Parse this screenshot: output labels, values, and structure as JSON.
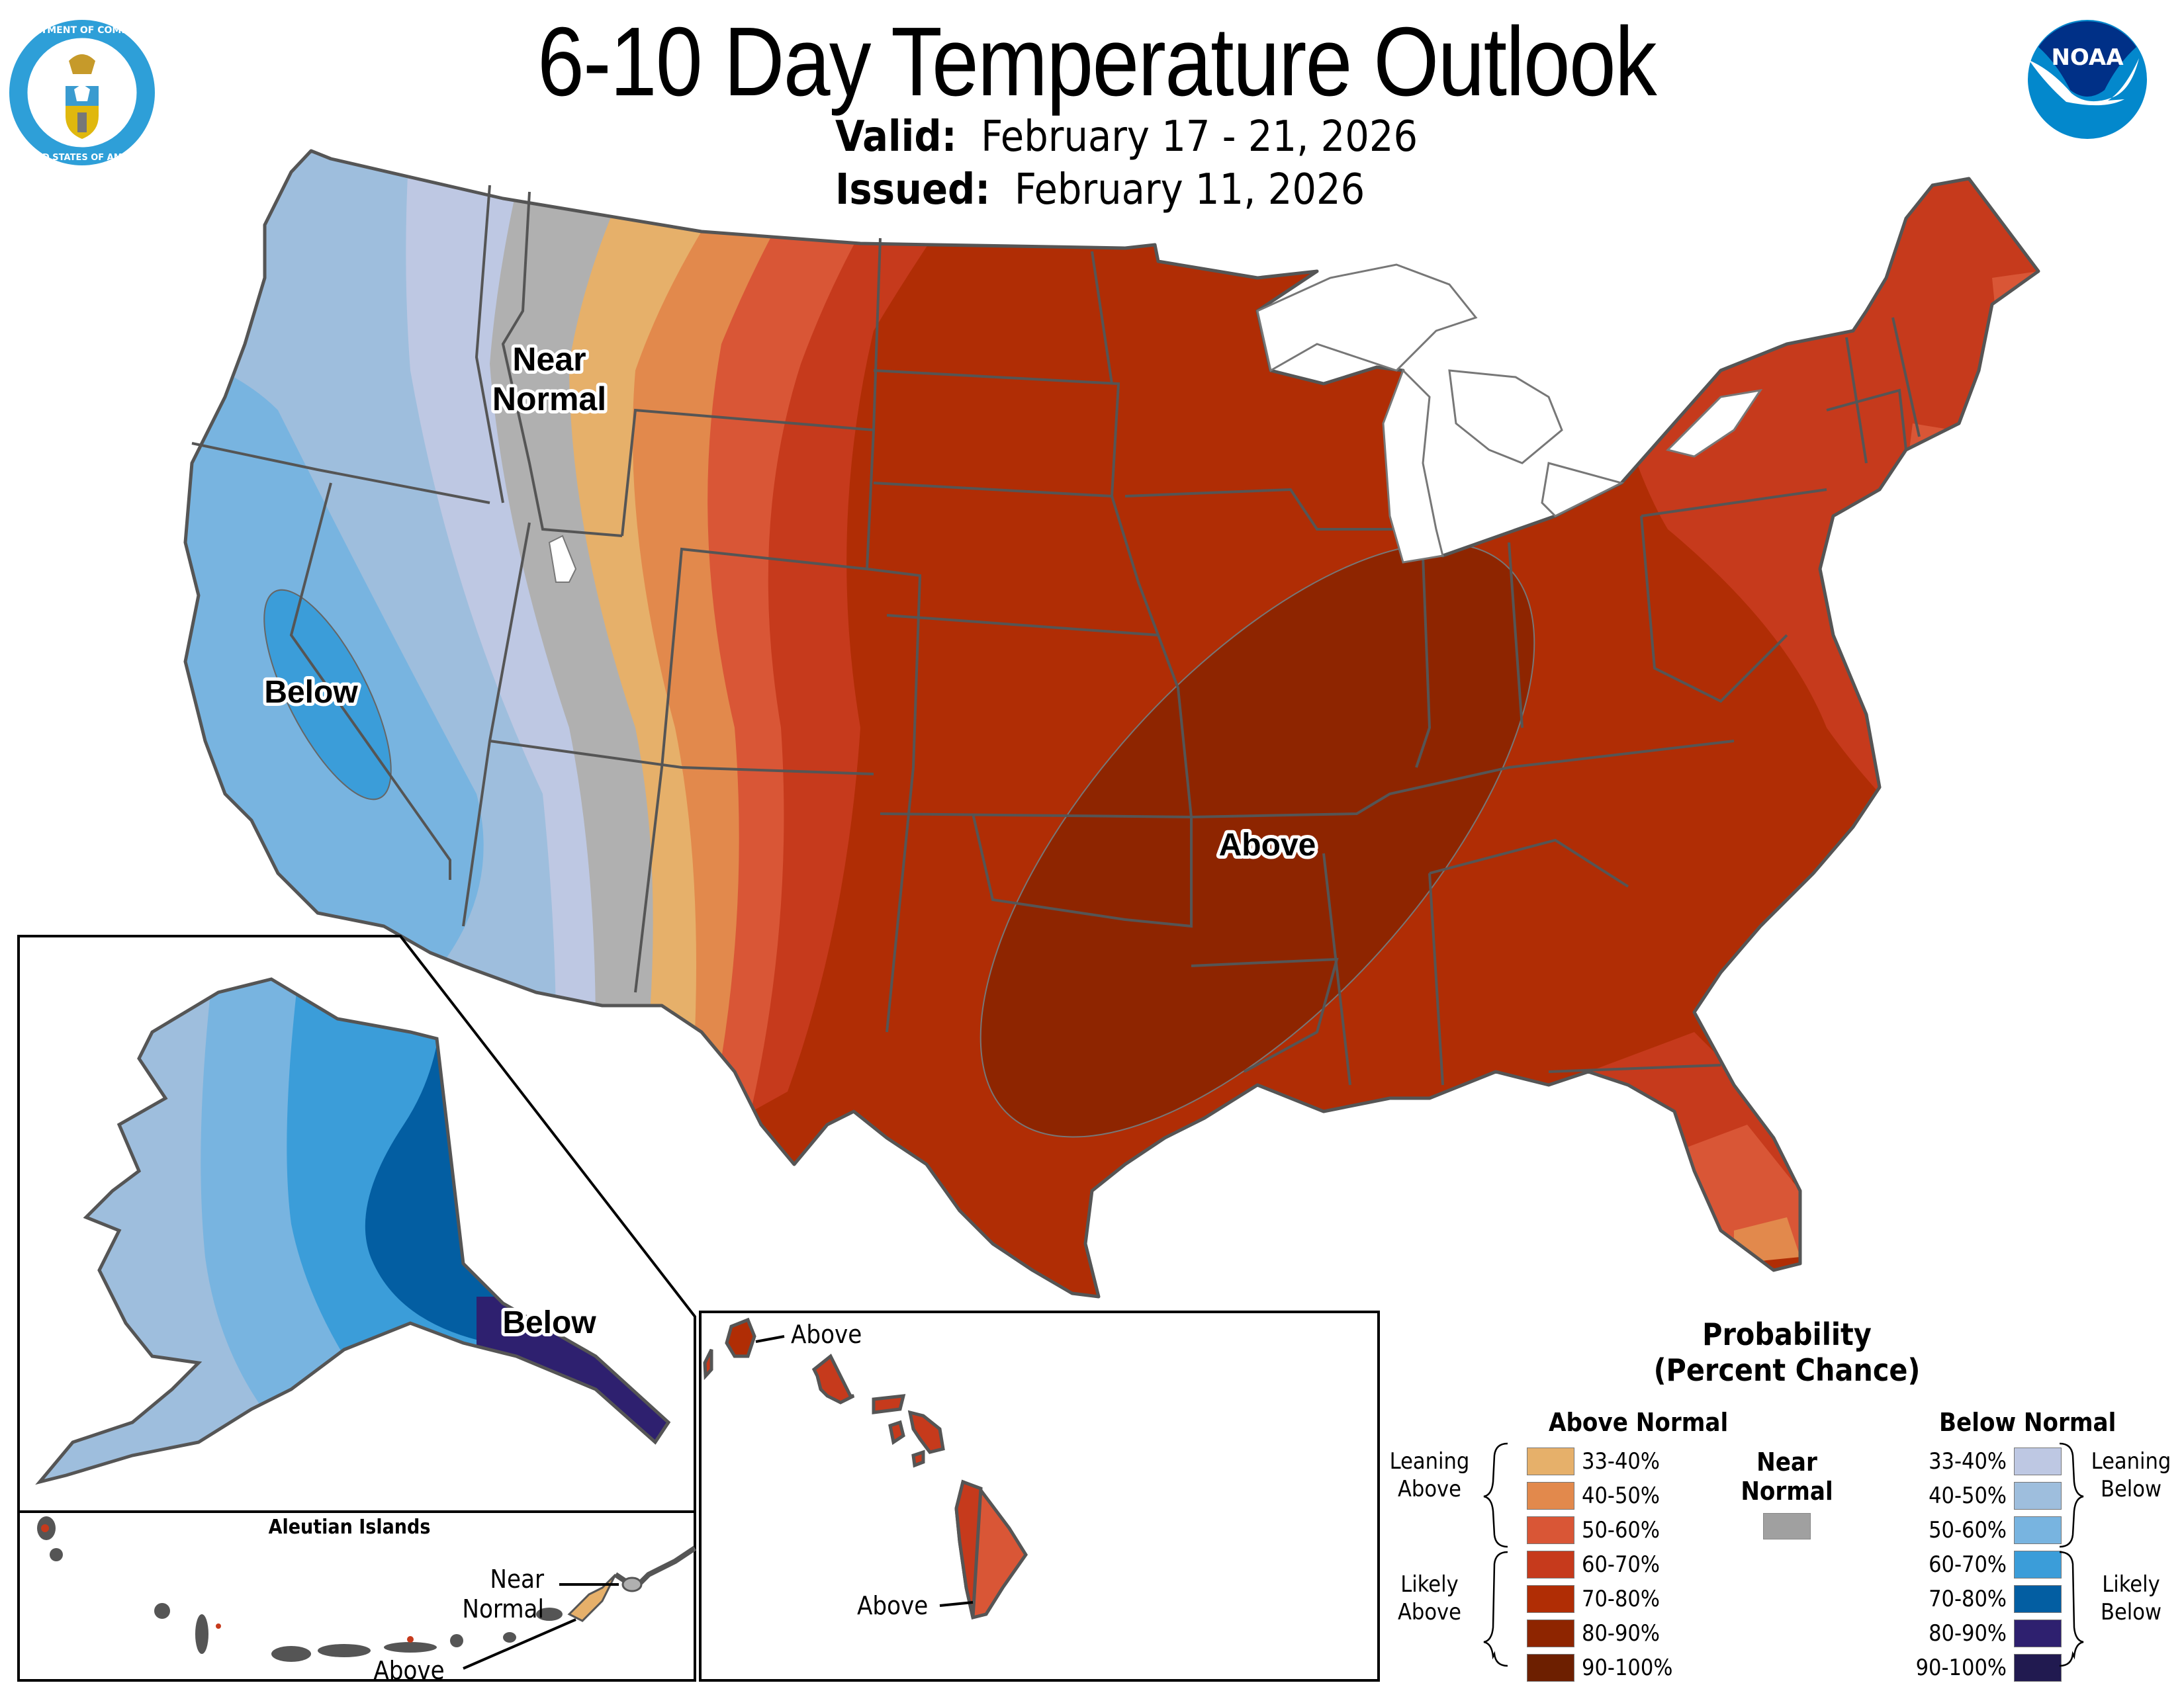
{
  "header": {
    "title": "6-10 Day Temperature Outlook",
    "valid_label": "Valid:",
    "valid_value": "February 17 - 21, 2026",
    "issued_label": "Issued:",
    "issued_value": "February 11, 2026"
  },
  "logos": {
    "left": "Department of Commerce seal",
    "left_text_top": "DEPARTMENT OF COMMERCE",
    "left_text_bottom": "UNITED STATES OF AMERICA",
    "right": "NOAA logo",
    "right_text": "NOAA"
  },
  "map_labels": {
    "near_normal_line1": "Near",
    "near_normal_line2": "Normal",
    "below_conus": "Below",
    "above_conus": "Above",
    "below_alaska": "Below"
  },
  "insets": {
    "aleutian_title": "Aleutian Islands",
    "aleutian_near_line1": "Near",
    "aleutian_near_line2": "Normal",
    "aleutian_above": "Above",
    "hawaii_above_top": "Above",
    "hawaii_above_bottom": "Above"
  },
  "legend": {
    "title_line1": "Probability",
    "title_line2": "(Percent Chance)",
    "above_header": "Above Normal",
    "below_header": "Below Normal",
    "near_header_line1": "Near",
    "near_header_line2": "Normal",
    "near_color": "#a0a0a0",
    "leaning_above_line1": "Leaning",
    "leaning_above_line2": "Above",
    "likely_above_line1": "Likely",
    "likely_above_line2": "Above",
    "leaning_below_line1": "Leaning",
    "leaning_below_line2": "Below",
    "likely_below_line1": "Likely",
    "likely_below_line2": "Below",
    "above": [
      {
        "label": "33-40%",
        "color": "#e6b06a"
      },
      {
        "label": "40-50%",
        "color": "#e2894c"
      },
      {
        "label": "50-60%",
        "color": "#d95636"
      },
      {
        "label": "60-70%",
        "color": "#c63a1c"
      },
      {
        "label": "70-80%",
        "color": "#b02d05"
      },
      {
        "label": "80-90%",
        "color": "#8e2500"
      },
      {
        "label": "90-100%",
        "color": "#6d1f00"
      }
    ],
    "below": [
      {
        "label": "33-40%",
        "color": "#bec8e3"
      },
      {
        "label": "40-50%",
        "color": "#9ebedd"
      },
      {
        "label": "50-60%",
        "color": "#78b4e0"
      },
      {
        "label": "60-70%",
        "color": "#3b9dd9"
      },
      {
        "label": "70-80%",
        "color": "#035ea2"
      },
      {
        "label": "80-90%",
        "color": "#2e206f"
      },
      {
        "label": "90-100%",
        "color": "#211a50"
      }
    ]
  },
  "chart_data": {
    "type": "map",
    "title": "6-10 Day Temperature Outlook",
    "subtitle": "Valid: February 17 - 21, 2026; Issued: February 11, 2026",
    "legend_title": "Probability (Percent Chance)",
    "categories": [
      "Above Normal",
      "Near Normal",
      "Below Normal"
    ],
    "bins": [
      "33-40%",
      "40-50%",
      "50-60%",
      "60-70%",
      "70-80%",
      "80-90%",
      "90-100%"
    ],
    "regions": [
      {
        "region": "Pacific Northwest (WA, OR)",
        "category": "Below Normal",
        "probability": "40-50%"
      },
      {
        "region": "California / western Nevada",
        "category": "Below Normal",
        "probability": "50-60%"
      },
      {
        "region": "Central California / Nevada border core",
        "category": "Below Normal",
        "probability": "60-70%"
      },
      {
        "region": "Idaho / eastern Nevada / western Arizona",
        "category": "Below Normal",
        "probability": "33-40%"
      },
      {
        "region": "Western Montana / Utah / eastern Arizona",
        "category": "Near Normal",
        "probability": ""
      },
      {
        "region": "Central Montana / Wyoming / western New Mexico",
        "category": "Above Normal",
        "probability": "33-40%"
      },
      {
        "region": "Eastern Montana / Colorado / New Mexico",
        "category": "Above Normal",
        "probability": "40-50%"
      },
      {
        "region": "Dakotas / eastern Colorado / west Texas",
        "category": "Above Normal",
        "probability": "50-60%"
      },
      {
        "region": "Minnesota / Nebraska / western Kansas / West Texas",
        "category": "Above Normal",
        "probability": "60-70%"
      },
      {
        "region": "Northeast / New England / Mid-Atlantic coast",
        "category": "Above Normal",
        "probability": "60-70%"
      },
      {
        "region": "Central & Southern Plains, Midwest, Southeast",
        "category": "Above Normal",
        "probability": "70-80%"
      },
      {
        "region": "Oklahoma / Arkansas / Missouri / Illinois / Indiana / Tennessee core",
        "category": "Above Normal",
        "probability": "80-90%"
      },
      {
        "region": "Southern Florida",
        "category": "Above Normal",
        "probability": "50-60%"
      },
      {
        "region": "Florida Keys tip",
        "category": "Above Normal",
        "probability": "40-50%"
      },
      {
        "region": "Alaska western coast",
        "category": "Below Normal",
        "probability": "40-50%"
      },
      {
        "region": "Alaska west-central",
        "category": "Below Normal",
        "probability": "50-60%"
      },
      {
        "region": "Alaska central",
        "category": "Below Normal",
        "probability": "60-70%"
      },
      {
        "region": "Alaska eastern interior",
        "category": "Below Normal",
        "probability": "70-80%"
      },
      {
        "region": "Alaska panhandle",
        "category": "Below Normal",
        "probability": "80-90%"
      },
      {
        "region": "Eastern Aleutians",
        "category": "Near Normal",
        "probability": ""
      },
      {
        "region": "Central Aleutians",
        "category": "Above Normal",
        "probability": "33-40%"
      },
      {
        "region": "Western Aleutians",
        "category": "Above Normal",
        "probability": "60-70%"
      },
      {
        "region": "Kauai / Niihau",
        "category": "Above Normal",
        "probability": "70-80%"
      },
      {
        "region": "Oahu / Maui County",
        "category": "Above Normal",
        "probability": "60-70%"
      },
      {
        "region": "Big Island west",
        "category": "Above Normal",
        "probability": "60-70%"
      },
      {
        "region": "Big Island east",
        "category": "Above Normal",
        "probability": "50-60%"
      }
    ]
  }
}
